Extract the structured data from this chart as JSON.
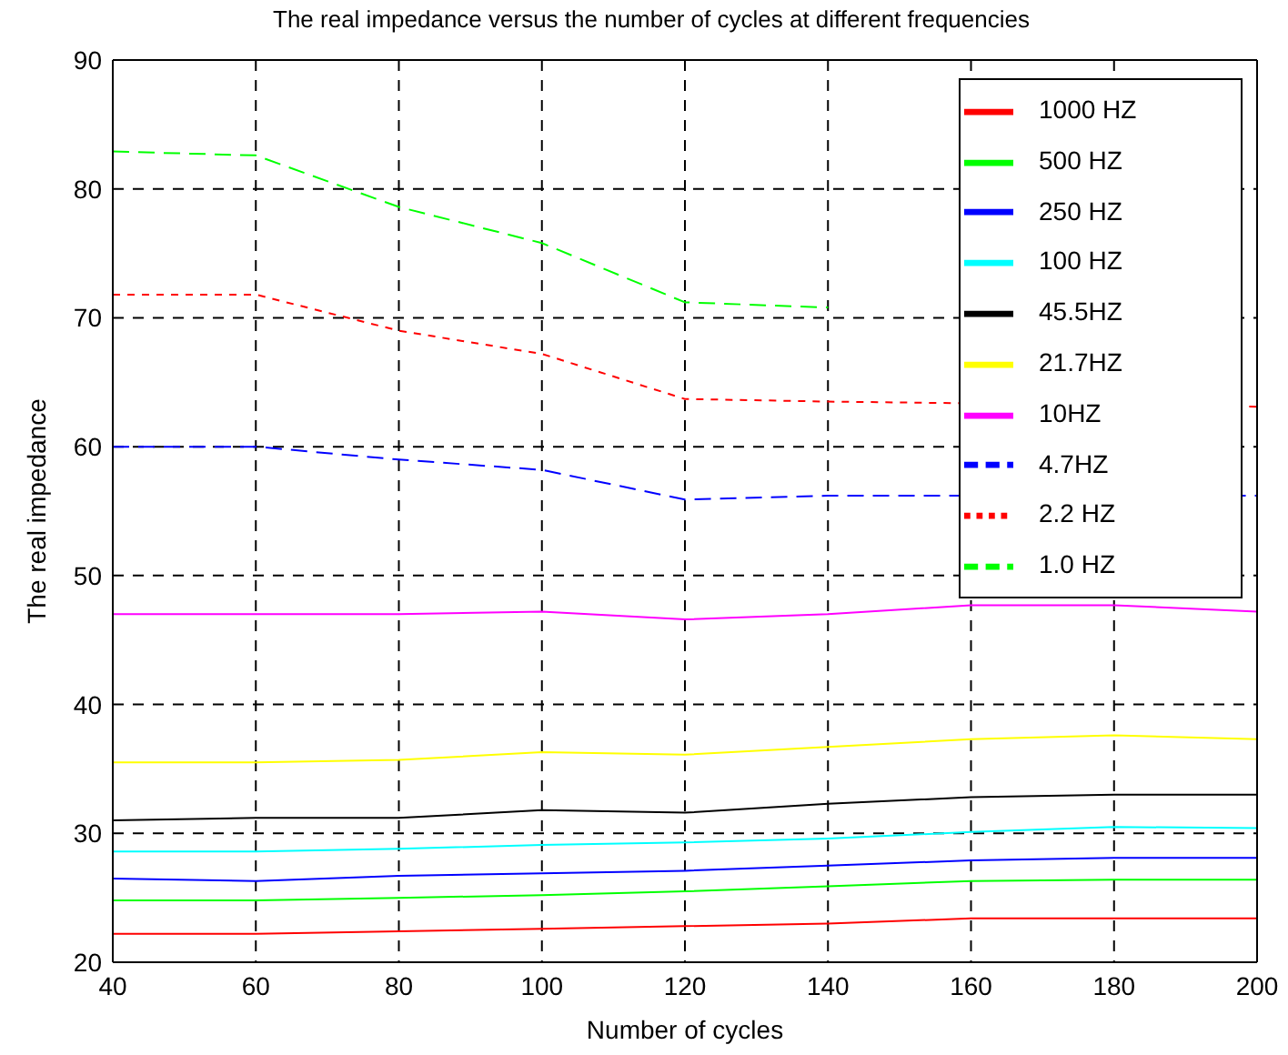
{
  "chart_data": {
    "type": "line",
    "title": "The real impedance versus the number of cycles at different frequencies",
    "xlabel": "Number of cycles",
    "ylabel": "The real impedance",
    "x": [
      40,
      60,
      80,
      100,
      120,
      140,
      160,
      180,
      200
    ],
    "xlim": [
      40,
      200
    ],
    "xticks": [
      40,
      60,
      80,
      100,
      120,
      140,
      160,
      180,
      200
    ],
    "ylim": [
      20,
      90
    ],
    "yticks": [
      20,
      30,
      40,
      50,
      60,
      70,
      80,
      90
    ],
    "grid": true,
    "legend": "top right",
    "marker": "none",
    "series": [
      {
        "name": "1000 HZ",
        "color": "#ff0000",
        "line_style": "solid",
        "values": [
          22.2,
          22.2,
          22.4,
          22.6,
          22.8,
          23.0,
          23.4,
          23.4,
          23.4
        ]
      },
      {
        "name": "500 HZ",
        "color": "#00ff00",
        "line_style": "solid",
        "values": [
          24.8,
          24.8,
          25.0,
          25.2,
          25.5,
          25.9,
          26.3,
          26.4,
          26.4
        ]
      },
      {
        "name": "250 HZ",
        "color": "#0000ff",
        "line_style": "solid",
        "values": [
          26.5,
          26.3,
          26.7,
          26.9,
          27.1,
          27.5,
          27.9,
          28.1,
          28.1
        ]
      },
      {
        "name": "100 HZ",
        "color": "#00ffff",
        "line_style": "solid",
        "values": [
          28.6,
          28.6,
          28.8,
          29.1,
          29.3,
          29.6,
          30.1,
          30.5,
          30.4
        ]
      },
      {
        "name": "45.5HZ",
        "color": "#000000",
        "line_style": "solid",
        "values": [
          31.0,
          31.2,
          31.2,
          31.8,
          31.6,
          32.3,
          32.8,
          33.0,
          33.0
        ]
      },
      {
        "name": "21.7HZ",
        "color": "#ffff00",
        "line_style": "solid",
        "values": [
          35.5,
          35.5,
          35.7,
          36.3,
          36.1,
          36.7,
          37.3,
          37.6,
          37.3
        ]
      },
      {
        "name": "10HZ",
        "color": "#ff00ff",
        "line_style": "solid",
        "values": [
          47.0,
          47.0,
          47.0,
          47.2,
          46.6,
          47.0,
          47.7,
          47.7,
          47.2
        ]
      },
      {
        "name": "4.7HZ",
        "color": "#0000ff",
        "line_style": "dashed",
        "values": [
          60.0,
          60.0,
          59.0,
          58.2,
          55.9,
          56.2,
          null,
          null,
          56.2
        ]
      },
      {
        "name": "2.2 HZ",
        "color": "#ff0000",
        "line_style": "dotted",
        "values": [
          71.8,
          71.8,
          69.0,
          67.2,
          63.7,
          63.5,
          null,
          null,
          63.1
        ]
      },
      {
        "name": "1.0 HZ",
        "color": "#00ff00",
        "line_style": "dashed",
        "values": [
          82.9,
          82.6,
          78.6,
          75.8,
          71.2,
          70.8,
          null,
          null,
          null
        ]
      }
    ]
  }
}
